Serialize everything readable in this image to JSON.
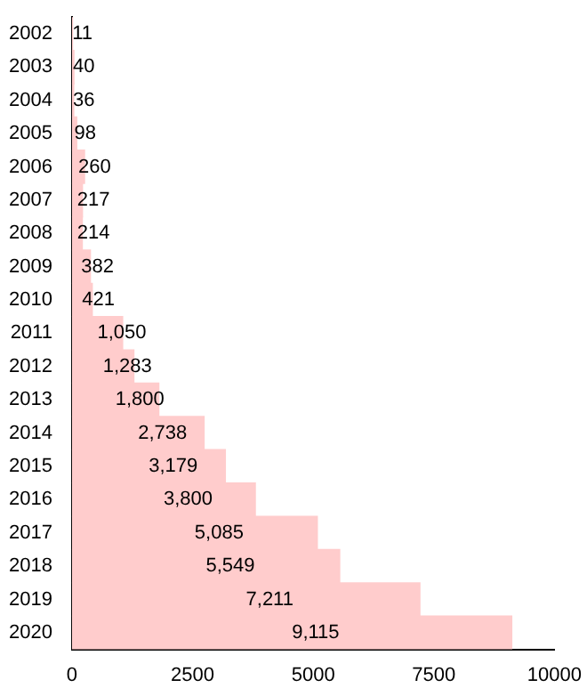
{
  "chart_data": {
    "type": "bar",
    "orientation": "horizontal",
    "categories": [
      "2002",
      "2003",
      "2004",
      "2005",
      "2006",
      "2007",
      "2008",
      "2009",
      "2010",
      "2011",
      "2012",
      "2013",
      "2014",
      "2015",
      "2016",
      "2017",
      "2018",
      "2019",
      "2020"
    ],
    "values": [
      11,
      40,
      36,
      98,
      260,
      217,
      214,
      382,
      421,
      1050,
      1283,
      1800,
      2738,
      3179,
      3800,
      5085,
      5549,
      7211,
      9115
    ],
    "value_labels": [
      "11",
      "40",
      "36",
      "98",
      "260",
      "217",
      "214",
      "382",
      "421",
      "1,050",
      "1,283",
      "1,800",
      "2,738",
      "3,179",
      "3,800",
      "5,085",
      "5,549",
      "7,211",
      "9,115"
    ],
    "color": "#ffcccc",
    "xlim": [
      0,
      10000
    ],
    "xticks": [
      0,
      2500,
      5000,
      7500,
      10000
    ],
    "grid": false,
    "legend": false
  }
}
